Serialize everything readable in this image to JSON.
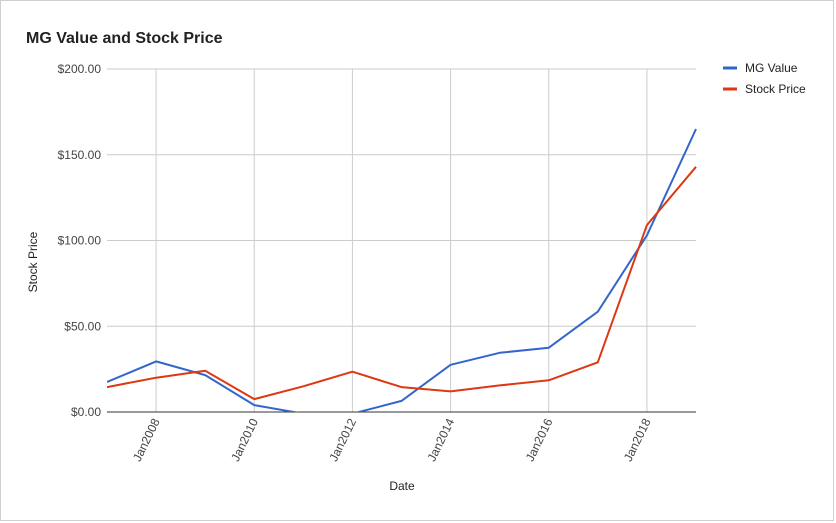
{
  "chart_data": {
    "type": "line",
    "title": "MG Value and Stock Price",
    "xlabel": "Date",
    "ylabel": "Stock Price",
    "x": [
      2007,
      2008,
      2009,
      2010,
      2011,
      2012,
      2013,
      2014,
      2015,
      2016,
      2017,
      2018,
      2019
    ],
    "x_ticks": [
      {
        "value": 2008,
        "label": "Jan2008"
      },
      {
        "value": 2010,
        "label": "Jan2010"
      },
      {
        "value": 2012,
        "label": "Jan2012"
      },
      {
        "value": 2014,
        "label": "Jan2014"
      },
      {
        "value": 2016,
        "label": "Jan2016"
      },
      {
        "value": 2018,
        "label": "Jan2018"
      }
    ],
    "y_ticks": [
      {
        "value": 0,
        "label": "$0.00"
      },
      {
        "value": 50,
        "label": "$50.00"
      },
      {
        "value": 100,
        "label": "$100.00"
      },
      {
        "value": 150,
        "label": "$150.00"
      },
      {
        "value": 200,
        "label": "$200.00"
      }
    ],
    "xlim": [
      2007,
      2019
    ],
    "ylim": [
      0,
      200
    ],
    "grid": true,
    "legend_position": "right-top",
    "series": [
      {
        "name": "MG Value",
        "color": "#3366cc",
        "values": [
          17.5,
          29.5,
          21.5,
          4,
          -1,
          -1,
          6.5,
          27.5,
          34.5,
          37.5,
          58.5,
          103,
          165
        ]
      },
      {
        "name": "Stock Price",
        "color": "#dc3912",
        "values": [
          14.5,
          20,
          24,
          7.5,
          15,
          23.5,
          14.5,
          12,
          15.5,
          18.5,
          29,
          109,
          143
        ]
      }
    ]
  }
}
